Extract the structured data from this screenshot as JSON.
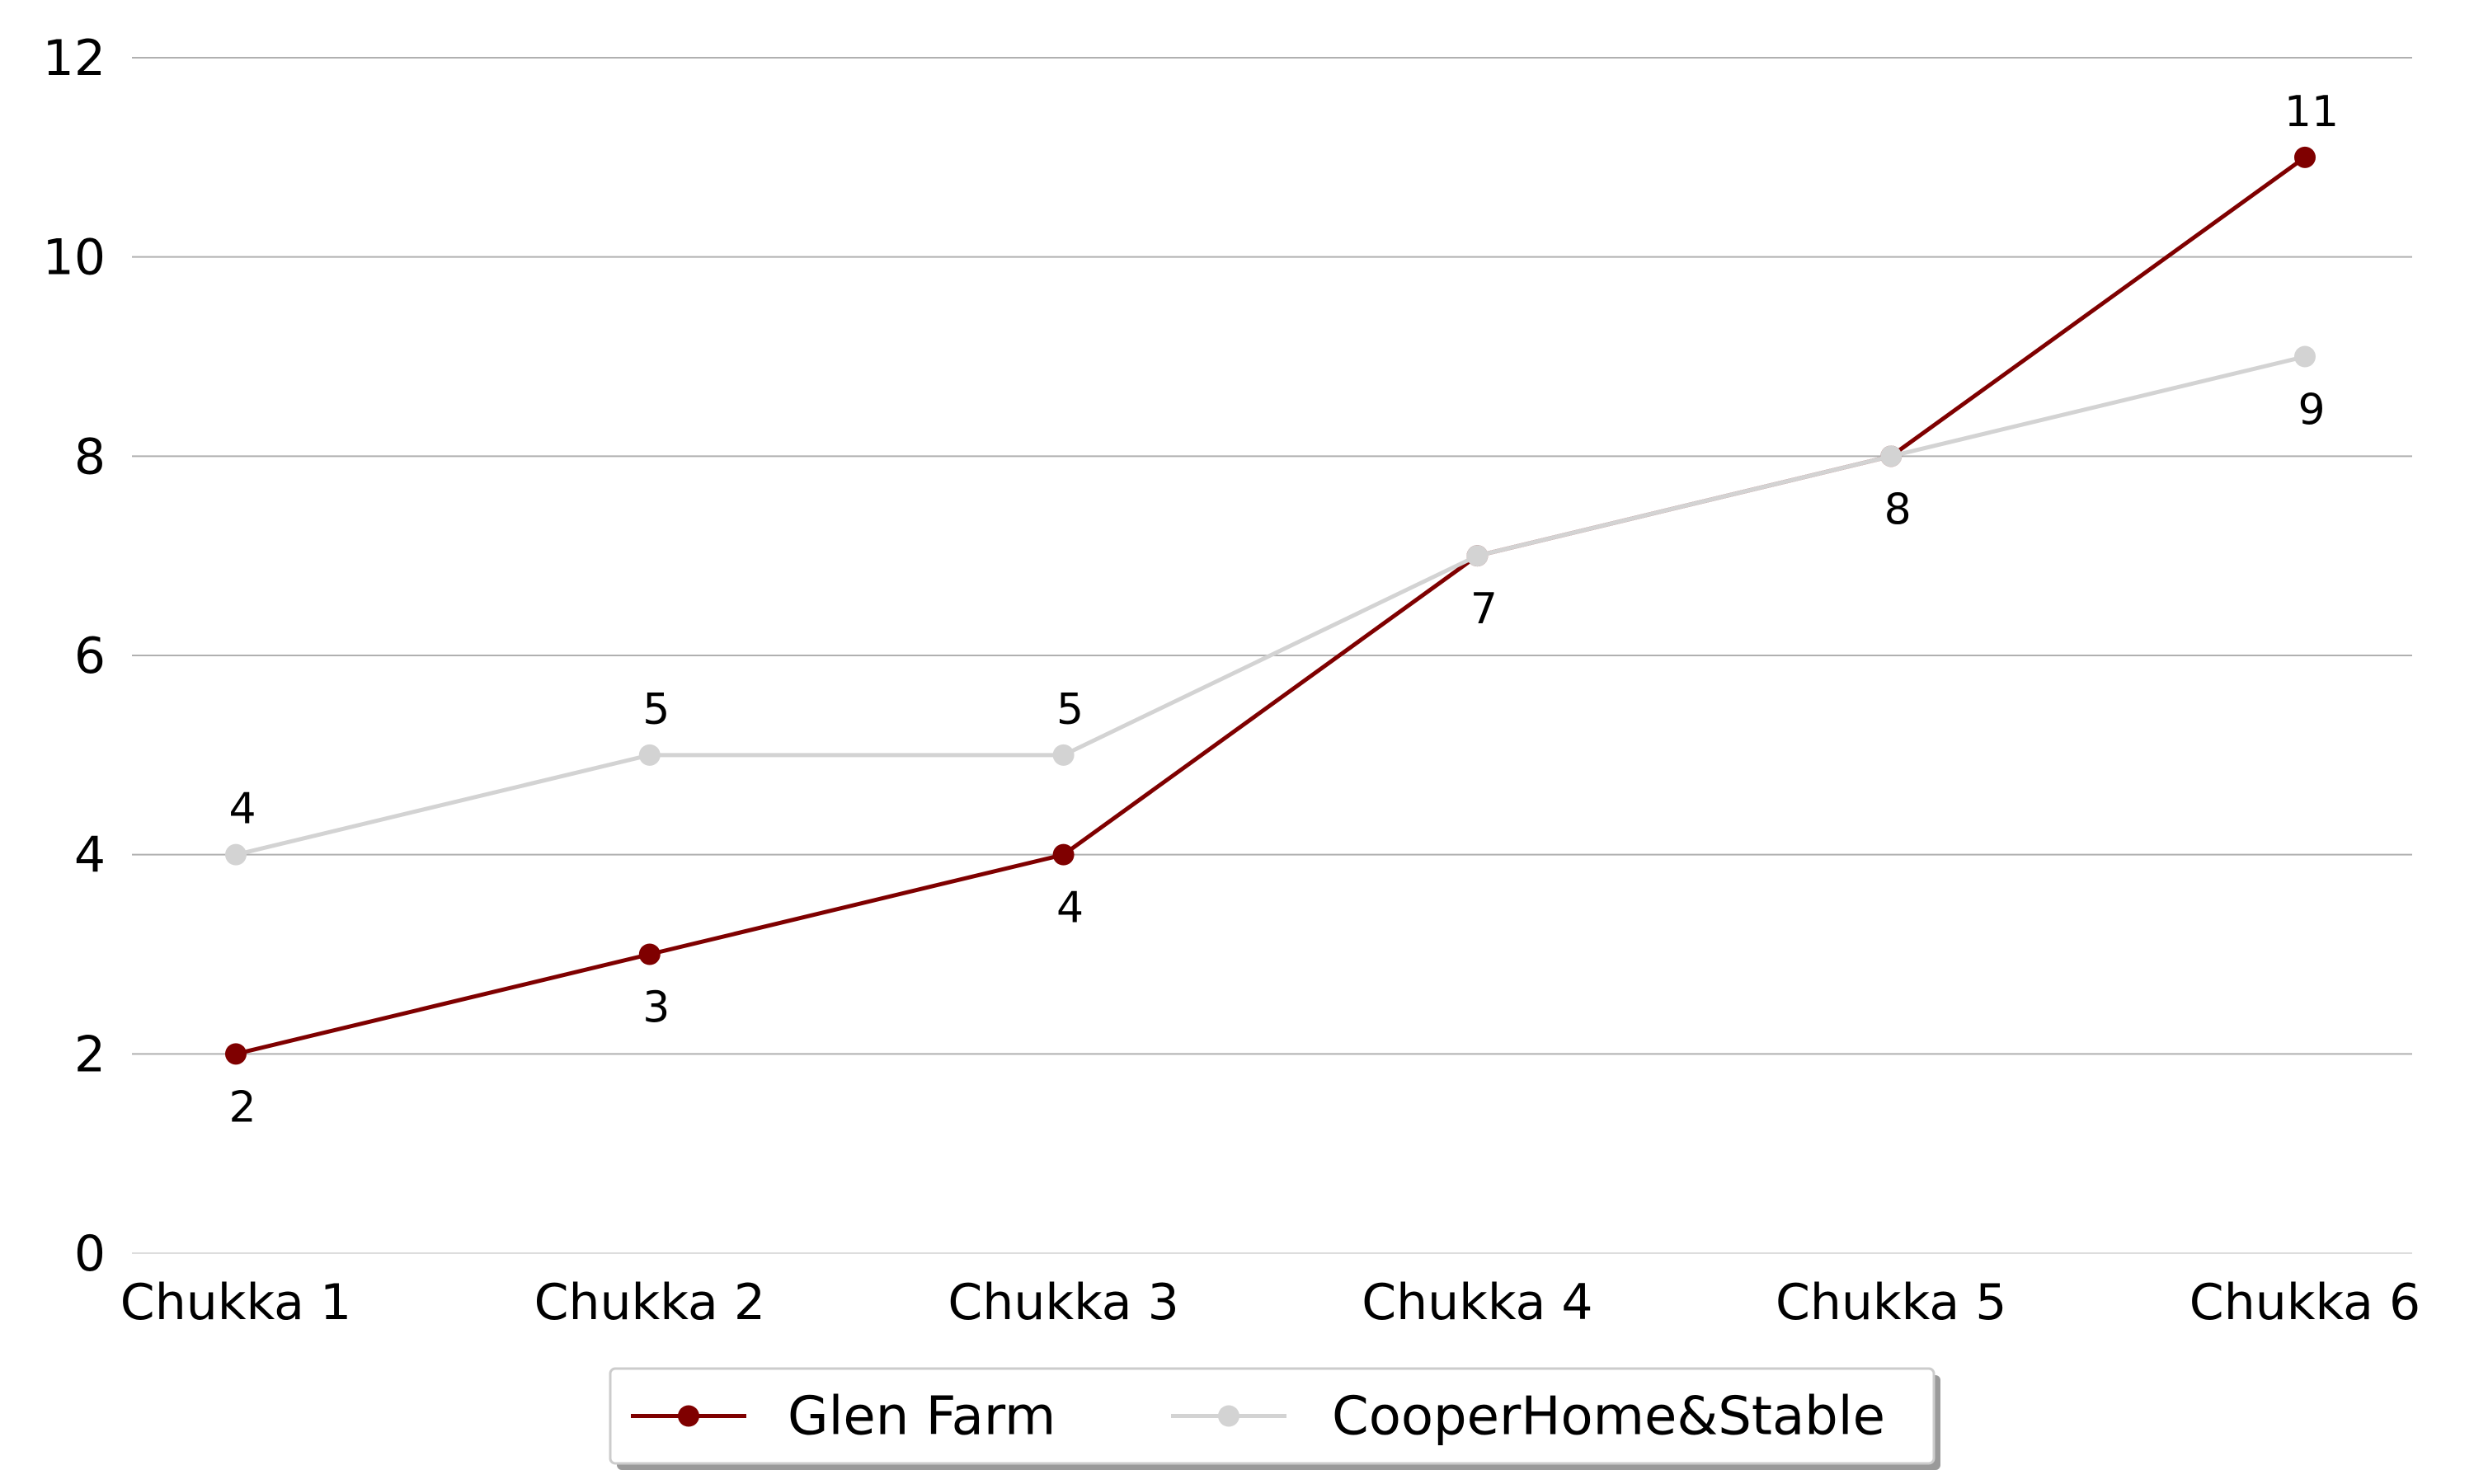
{
  "chart_data": {
    "type": "line",
    "title": "",
    "xlabel": "",
    "ylabel": "",
    "categories": [
      "Chukka 1",
      "Chukka 2",
      "Chukka 3",
      "Chukka 4",
      "Chukka 5",
      "Chukka 6"
    ],
    "ylim": [
      0,
      12
    ],
    "yticks": [
      "0",
      "2",
      "4",
      "6",
      "8",
      "10",
      "12"
    ],
    "grid": "horizontal",
    "legend_position": "bottom-center",
    "series": [
      {
        "name": "Glen Farm",
        "color": "#7f0000",
        "values": [
          2,
          3,
          4,
          7,
          8,
          11
        ],
        "label_placement": [
          "below",
          "below",
          "below",
          "below",
          "below",
          "above"
        ],
        "labels": [
          "2",
          "3",
          "4",
          "7",
          "8",
          "11"
        ]
      },
      {
        "name": "CooperHome&Stable",
        "color": "#d3d3d3",
        "values": [
          4,
          5,
          5,
          7,
          8,
          9
        ],
        "label_placement": [
          "above",
          "above",
          "above",
          "none",
          "none",
          "below"
        ],
        "labels": [
          "4",
          "5",
          "5",
          "",
          "",
          "9"
        ]
      }
    ],
    "colors": {
      "grid": "#b0b0b0",
      "axis_text": "#000000"
    }
  }
}
